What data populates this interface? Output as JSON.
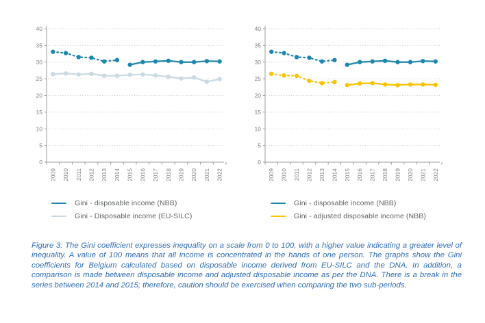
{
  "figure": {
    "caption": "Figure 3: The Gini coefficient expresses inequality on a scale from 0 to 100, with a higher value indicating a greater level of inequality. A value of 100 means that all income is concentrated in the hands of one person. The graphs show the Gini coefficients for Belgium calculated based on disposable income derived from EU-SILC and the DNA. In addition, a comparison is made between disposable income and adjusted disposable income as per the DNA. There is a break in the series between 2014 and 2015; therefore, caution should be exercised when comparing the two sub-periods."
  },
  "colors": {
    "axis": "#9b9b9b",
    "grid": "#c9c9c9",
    "tick_text": "#838383",
    "legend_text": "#5e6163",
    "caption_text": "#2e6cb5",
    "nbb_blue": "#1e87ad",
    "eusilc_light_blue": "#c9dae4",
    "adjusted_yellow": "#f8c301"
  },
  "chart_data": [
    {
      "type": "line",
      "title": "",
      "xlabel": "",
      "ylabel": "",
      "ylim": [
        0,
        40
      ],
      "ytick_step": 5,
      "grid": "horizontal dotted",
      "legend_position": "bottom-left",
      "categories": [
        "2009",
        "2010",
        "2011",
        "2012",
        "2013",
        "2014",
        "2015",
        "2016",
        "2017",
        "2018",
        "2019",
        "2020",
        "2021",
        "2022"
      ],
      "note": "series break between 2014 and 2015: 2009-2014 drawn dotted, 2015-2022 solid, not connected",
      "series": [
        {
          "name": "Gini - disposable income (NBB)",
          "color": "#1e87ad",
          "style": "dashed-then-solid",
          "break_after_index": 5,
          "values": [
            33.1,
            32.7,
            31.5,
            31.3,
            30.2,
            30.6,
            29.2,
            30.0,
            30.2,
            30.4,
            30.0,
            30.0,
            30.3,
            30.2
          ]
        },
        {
          "name": "Gini - Disposable income (EU-SILC)",
          "color": "#c9dae4",
          "style": "solid",
          "break_after_index": null,
          "values": [
            26.4,
            26.6,
            26.3,
            26.5,
            25.9,
            25.9,
            26.2,
            26.3,
            26.0,
            25.6,
            25.1,
            25.4,
            24.1,
            24.9
          ]
        }
      ]
    },
    {
      "type": "line",
      "title": "",
      "xlabel": "",
      "ylabel": "",
      "ylim": [
        0,
        40
      ],
      "ytick_step": 5,
      "grid": "horizontal dotted",
      "legend_position": "bottom-left",
      "categories": [
        "2009",
        "2010",
        "2011",
        "2012",
        "2013",
        "2014",
        "2015",
        "2016",
        "2017",
        "2018",
        "2019",
        "2020",
        "2021",
        "2022"
      ],
      "note": "series break between 2014 and 2015: 2009-2014 drawn dotted, 2015-2022 solid, not connected",
      "series": [
        {
          "name": "Gini - disposable income (NBB)",
          "color": "#1e87ad",
          "style": "dashed-then-solid",
          "break_after_index": 5,
          "values": [
            33.1,
            32.7,
            31.5,
            31.3,
            30.2,
            30.6,
            29.2,
            30.0,
            30.2,
            30.4,
            30.0,
            30.0,
            30.3,
            30.2
          ]
        },
        {
          "name": "Gini - adjusted disposable income (NBB)",
          "color": "#f8c301",
          "style": "dashed-then-solid",
          "break_after_index": 5,
          "values": [
            26.5,
            26.0,
            25.9,
            24.4,
            23.7,
            24.0,
            23.1,
            23.6,
            23.7,
            23.3,
            23.1,
            23.3,
            23.3,
            23.2
          ]
        }
      ]
    }
  ]
}
